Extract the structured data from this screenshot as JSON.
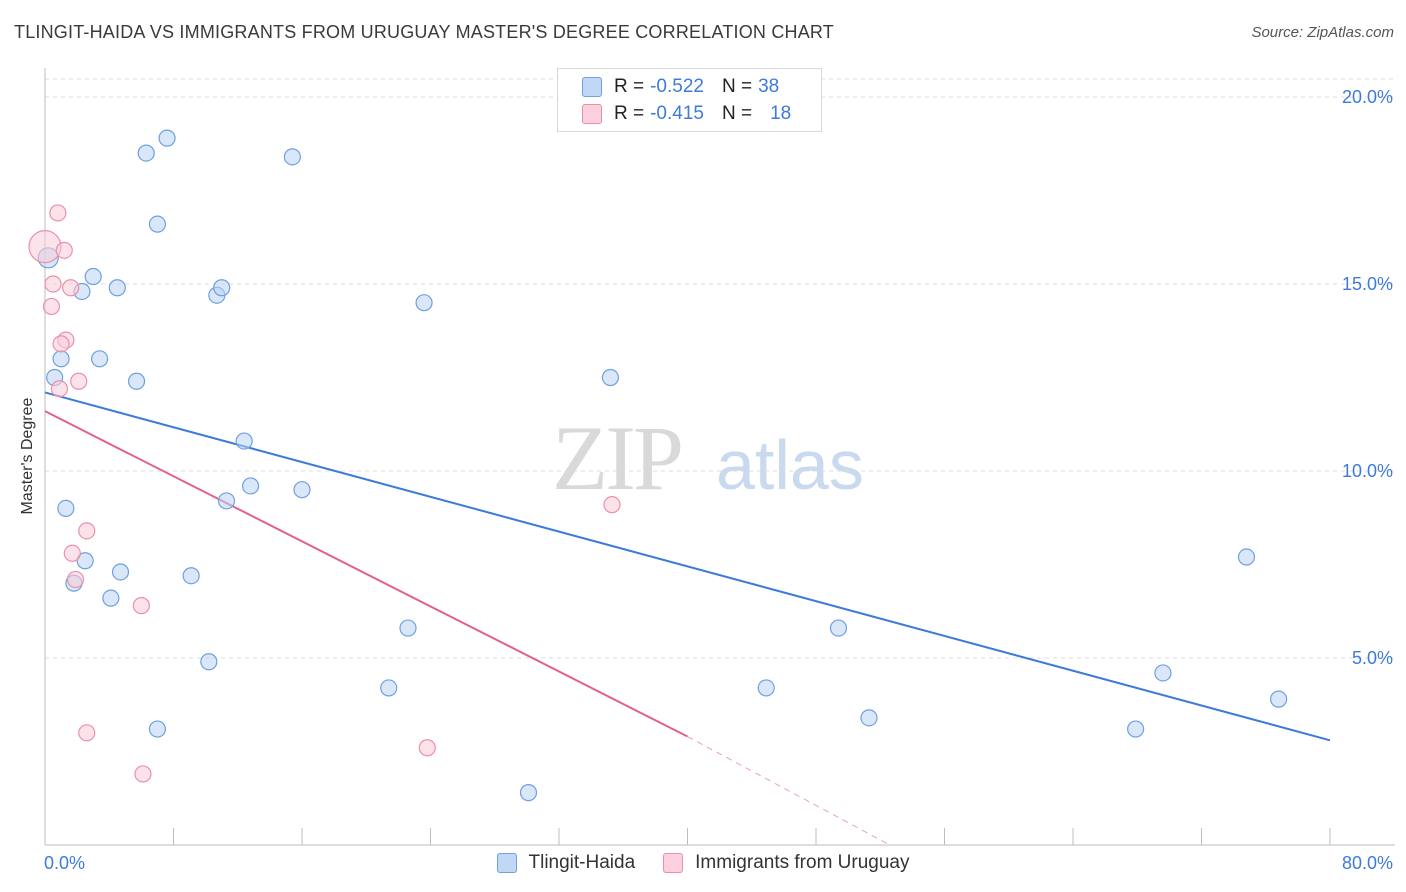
{
  "header": {
    "title": "TLINGIT-HAIDA VS IMMIGRANTS FROM URUGUAY MASTER'S DEGREE CORRELATION CHART",
    "source": "Source: ZipAtlas.com"
  },
  "watermark": {
    "zip": "ZIP",
    "atlas": "atlas"
  },
  "legend": {
    "rows": [
      {
        "r_label": "R =",
        "r_value": "-0.522",
        "n_label": "N =",
        "n_value": "38",
        "color": "#a9c8f0",
        "border": "#6fa0e0"
      },
      {
        "r_label": "R =",
        "r_value": "-0.415",
        "n_label": "N =",
        "n_value": "18",
        "color": "#f9c3d3",
        "border": "#ec8fab"
      }
    ]
  },
  "bottom_legend": {
    "items": [
      "Tlingit-Haida",
      "Immigrants from Uruguay"
    ]
  },
  "chart_data": {
    "type": "scatter",
    "xlabel": "",
    "ylabel": "Master's Degree",
    "xlim": [
      0,
      80
    ],
    "ylim": [
      0,
      20.5
    ],
    "x_tick_labels": [
      "0.0%",
      "80.0%"
    ],
    "y_ticks": [
      5,
      10,
      15,
      20
    ],
    "y_tick_labels": [
      "5.0%",
      "10.0%",
      "15.0%",
      "20.0%"
    ],
    "grid": true,
    "legend_position": "top-center",
    "colors": {
      "blue": "#3d7bd9",
      "pink": "#e0628c",
      "blue_fill": "#b9d3f3",
      "pink_fill": "#f9ccd9",
      "tick_label": "#3d7bd9"
    },
    "series": [
      {
        "name": "Tlingit-Haida",
        "points": [
          [
            0.2,
            15.7
          ],
          [
            6.3,
            18.5
          ],
          [
            7.6,
            18.9
          ],
          [
            15.4,
            18.4
          ],
          [
            7.0,
            16.6
          ],
          [
            3.0,
            15.2
          ],
          [
            2.3,
            14.8
          ],
          [
            4.5,
            14.9
          ],
          [
            10.7,
            14.7
          ],
          [
            11.0,
            14.9
          ],
          [
            23.6,
            14.5
          ],
          [
            1.0,
            13.0
          ],
          [
            3.4,
            13.0
          ],
          [
            0.6,
            12.5
          ],
          [
            5.7,
            12.4
          ],
          [
            35.2,
            12.5
          ],
          [
            12.4,
            10.8
          ],
          [
            1.3,
            9.0
          ],
          [
            11.3,
            9.2
          ],
          [
            12.8,
            9.6
          ],
          [
            16.0,
            9.5
          ],
          [
            2.5,
            7.6
          ],
          [
            4.7,
            7.3
          ],
          [
            9.1,
            7.2
          ],
          [
            1.8,
            7.0
          ],
          [
            4.1,
            6.6
          ],
          [
            22.6,
            5.8
          ],
          [
            49.4,
            5.8
          ],
          [
            74.8,
            7.7
          ],
          [
            10.2,
            4.9
          ],
          [
            21.4,
            4.2
          ],
          [
            44.9,
            4.2
          ],
          [
            69.6,
            4.6
          ],
          [
            7.0,
            3.1
          ],
          [
            51.3,
            3.4
          ],
          [
            67.9,
            3.1
          ],
          [
            76.8,
            3.9
          ],
          [
            30.1,
            1.4
          ]
        ],
        "trend": {
          "x": [
            0,
            80
          ],
          "y": [
            12.1,
            2.8
          ]
        }
      },
      {
        "name": "Immigrants from Uruguay",
        "points": [
          [
            0.0,
            16.0
          ],
          [
            0.8,
            16.9
          ],
          [
            1.2,
            15.9
          ],
          [
            0.5,
            15.0
          ],
          [
            1.6,
            14.9
          ],
          [
            0.4,
            14.4
          ],
          [
            1.3,
            13.5
          ],
          [
            1.0,
            13.4
          ],
          [
            0.9,
            12.2
          ],
          [
            2.1,
            12.4
          ],
          [
            35.3,
            9.1
          ],
          [
            2.6,
            8.4
          ],
          [
            1.7,
            7.8
          ],
          [
            1.9,
            7.1
          ],
          [
            6.0,
            6.4
          ],
          [
            2.6,
            3.0
          ],
          [
            23.8,
            2.6
          ],
          [
            6.1,
            1.9
          ]
        ],
        "trend": {
          "x": [
            0,
            40
          ],
          "y": [
            11.6,
            2.9
          ],
          "dashed_to": {
            "x": 52.6,
            "y": 0.0
          }
        }
      }
    ]
  }
}
